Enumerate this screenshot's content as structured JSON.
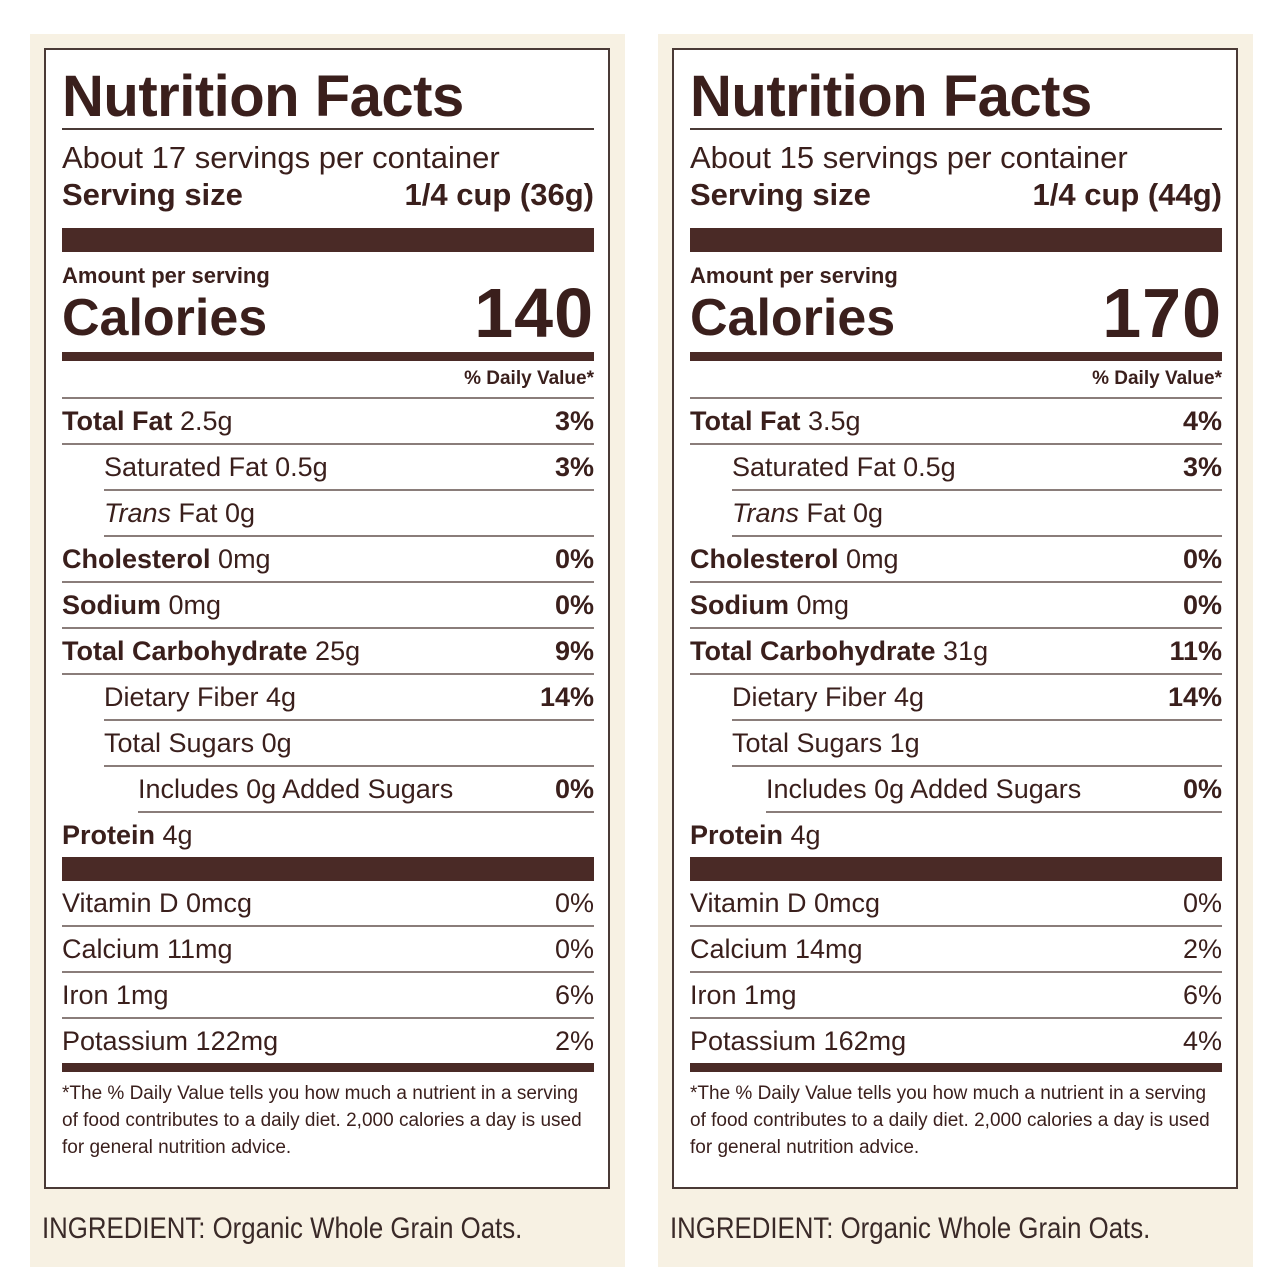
{
  "labels": [
    {
      "title": "Nutrition Facts",
      "servings": "About 17 servings per container",
      "serving_size_label": "Serving size",
      "serving_size_value": "1/4 cup (36g)",
      "amount_per_serving": "Amount per serving",
      "calories_label": "Calories",
      "calories_value": "140",
      "dv_header": "% Daily Value*",
      "total_fat": {
        "name": "Total Fat",
        "amount": "2.5g",
        "dv": "3%"
      },
      "saturated_fat": {
        "name": "Saturated Fat 0.5g",
        "dv": "3%"
      },
      "trans_fat": {
        "name_italic": "Trans",
        "name_rest": "Fat 0g"
      },
      "cholesterol": {
        "name": "Cholesterol",
        "amount": "0mg",
        "dv": "0%"
      },
      "sodium": {
        "name": "Sodium",
        "amount": "0mg",
        "dv": "0%"
      },
      "total_carb": {
        "name": "Total Carbohydrate",
        "amount": "25g",
        "dv": "9%"
      },
      "fiber": {
        "name": "Dietary Fiber 4g",
        "dv": "14%"
      },
      "total_sugars": {
        "name": "Total Sugars 0g"
      },
      "added_sugars": {
        "name": "Includes 0g Added Sugars",
        "dv": "0%"
      },
      "protein": {
        "name": "Protein",
        "amount": "4g"
      },
      "vitamin_d": {
        "name": "Vitamin D 0mcg",
        "dv": "0%"
      },
      "calcium": {
        "name": "Calcium 11mg",
        "dv": "0%"
      },
      "iron": {
        "name": "Iron 1mg",
        "dv": "6%"
      },
      "potassium": {
        "name": "Potassium 122mg",
        "dv": "2%"
      },
      "footnote": "*The % Daily Value tells you how much a nutrient in a serving of food contributes to a daily diet. 2,000 calories a day is used for general nutrition advice.",
      "ingredient": "INGREDIENT: Organic Whole Grain Oats."
    },
    {
      "title": "Nutrition Facts",
      "servings": "About 15 servings per container",
      "serving_size_label": "Serving size",
      "serving_size_value": "1/4 cup (44g)",
      "amount_per_serving": "Amount per serving",
      "calories_label": "Calories",
      "calories_value": "170",
      "dv_header": "% Daily Value*",
      "total_fat": {
        "name": "Total Fat",
        "amount": "3.5g",
        "dv": "4%"
      },
      "saturated_fat": {
        "name": "Saturated Fat 0.5g",
        "dv": "3%"
      },
      "trans_fat": {
        "name_italic": "Trans",
        "name_rest": "Fat 0g"
      },
      "cholesterol": {
        "name": "Cholesterol",
        "amount": "0mg",
        "dv": "0%"
      },
      "sodium": {
        "name": "Sodium",
        "amount": "0mg",
        "dv": "0%"
      },
      "total_carb": {
        "name": "Total Carbohydrate",
        "amount": "31g",
        "dv": "11%"
      },
      "fiber": {
        "name": "Dietary Fiber 4g",
        "dv": "14%"
      },
      "total_sugars": {
        "name": "Total Sugars 1g"
      },
      "added_sugars": {
        "name": "Includes 0g Added Sugars",
        "dv": "0%"
      },
      "protein": {
        "name": "Protein",
        "amount": "4g"
      },
      "vitamin_d": {
        "name": "Vitamin D 0mcg",
        "dv": "0%"
      },
      "calcium": {
        "name": "Calcium 14mg",
        "dv": "2%"
      },
      "iron": {
        "name": "Iron 1mg",
        "dv": "6%"
      },
      "potassium": {
        "name": "Potassium 162mg",
        "dv": "4%"
      },
      "footnote": "*The % Daily Value tells you how much a nutrient in a serving of food contributes to a daily diet. 2,000 calories a day is used for general nutrition advice.",
      "ingredient": "INGREDIENT: Organic Whole Grain Oats."
    }
  ]
}
